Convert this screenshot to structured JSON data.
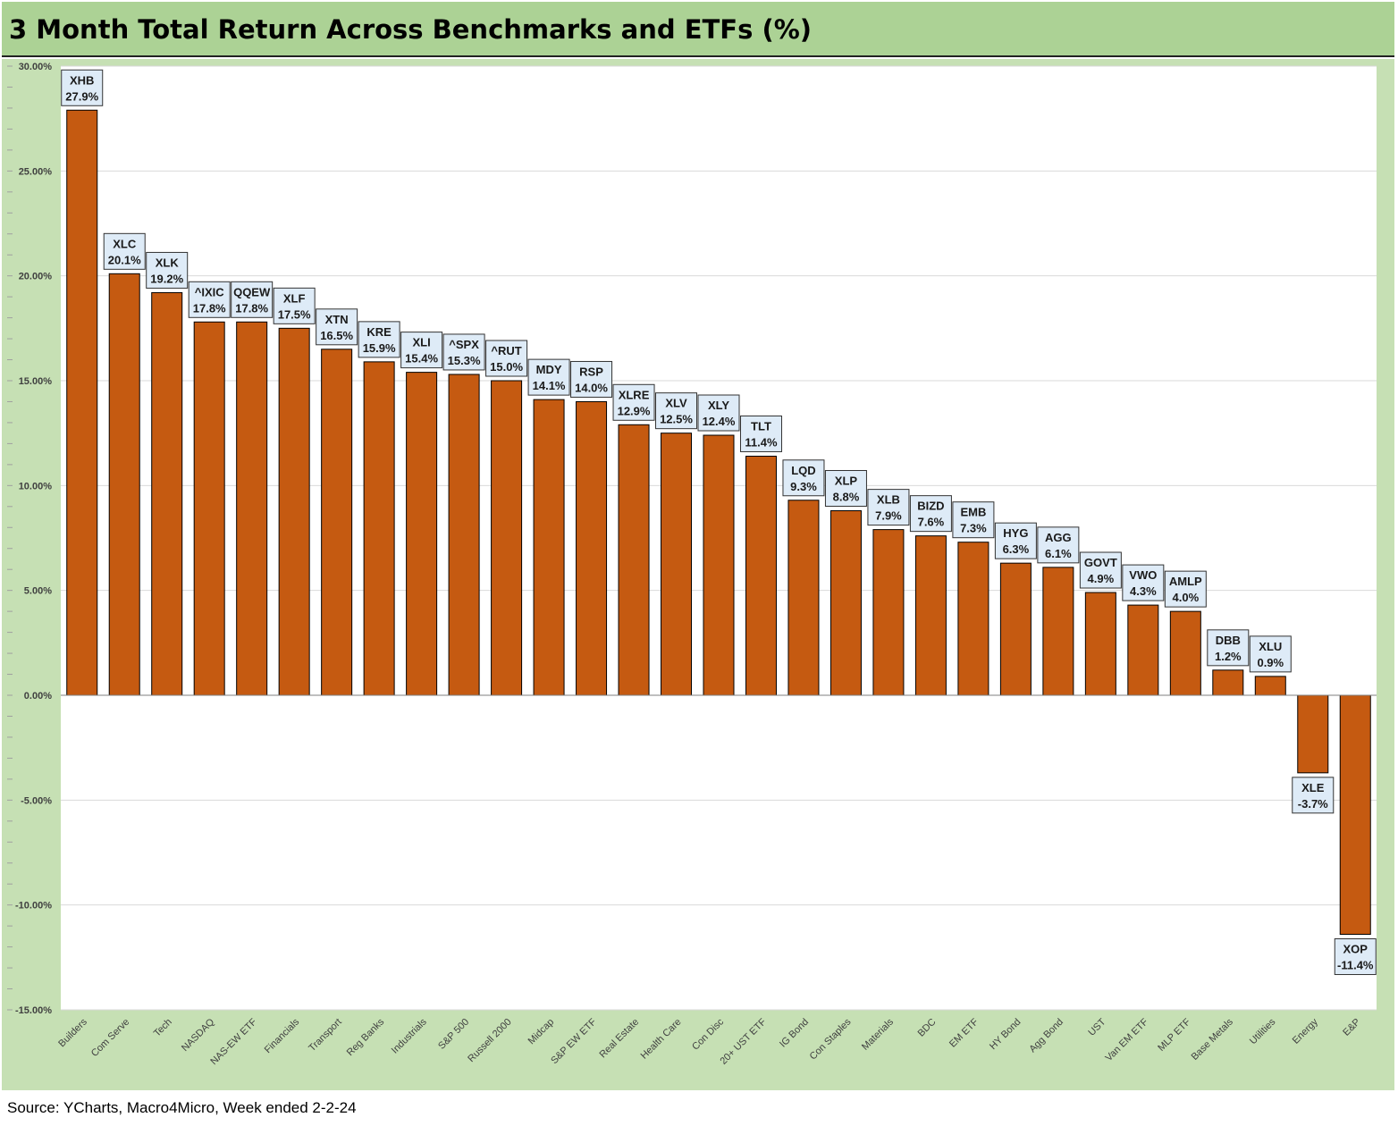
{
  "title": "3 Month Total Return Across Benchmarks and ETFs (%)",
  "source": "Source: YCharts, Macro4Micro, Week ended 2-2-24",
  "colors": {
    "bar": "#c55a11",
    "title_bg": "#acd295",
    "chart_bg": "#c6e0b4",
    "plot_bg": "#ffffff",
    "label_bg": "#deebf7"
  },
  "chart_data": {
    "type": "bar",
    "title": "3 Month Total Return Across Benchmarks and ETFs (%)",
    "ylim": [
      -15,
      30
    ],
    "ytick_values": [
      30,
      25,
      20,
      15,
      10,
      5,
      0,
      -5,
      -10,
      -15
    ],
    "ytick_labels": [
      "30.00%",
      "25.00%",
      "20.00%",
      "15.00%",
      "10.00%",
      "5.00%",
      "0.00%",
      "-5.00%",
      "-10.00%",
      "-15.00%"
    ],
    "grid": true,
    "categories": [
      "Builders",
      "Com Serve",
      "Tech",
      "NASDAQ",
      "NAS-EW ETF",
      "Financials",
      "Transport",
      "Reg Banks",
      "Industrials",
      "S&P 500",
      "Russell 2000",
      "Midcap",
      "S&P EW ETF",
      "Real Estate",
      "Health Care",
      "Con Disc",
      "20+ UST ETF",
      "IG Bond",
      "Con Staples",
      "Materials",
      "BDC",
      "EM ETF",
      "HY Bond",
      "Agg Bond",
      "UST",
      "Van EM ETF",
      "MLP ETF",
      "Base Metals",
      "Utilities",
      "Energy",
      "E&P"
    ],
    "tickers": [
      "XHB",
      "XLC",
      "XLK",
      "^IXIC",
      "QQEW",
      "XLF",
      "XTN",
      "KRE",
      "XLI",
      "^SPX",
      "^RUT",
      "MDY",
      "RSP",
      "XLRE",
      "XLV",
      "XLY",
      "TLT",
      "LQD",
      "XLP",
      "XLB",
      "BIZD",
      "EMB",
      "HYG",
      "AGG",
      "GOVT",
      "VWO",
      "AMLP",
      "DBB",
      "XLU",
      "XLE",
      "XOP"
    ],
    "values": [
      27.9,
      20.1,
      19.2,
      17.8,
      17.8,
      17.5,
      16.5,
      15.9,
      15.4,
      15.3,
      15.0,
      14.1,
      14.0,
      12.9,
      12.5,
      12.4,
      11.4,
      9.3,
      8.8,
      7.9,
      7.6,
      7.3,
      6.3,
      6.1,
      4.9,
      4.3,
      4.0,
      1.2,
      0.9,
      -3.7,
      -11.4
    ],
    "value_labels": [
      "27.9%",
      "20.1%",
      "19.2%",
      "17.8%",
      "17.8%",
      "17.5%",
      "16.5%",
      "15.9%",
      "15.4%",
      "15.3%",
      "15.0%",
      "14.1%",
      "14.0%",
      "12.9%",
      "12.5%",
      "12.4%",
      "11.4%",
      "9.3%",
      "8.8%",
      "7.9%",
      "7.6%",
      "7.3%",
      "6.3%",
      "6.1%",
      "4.9%",
      "4.3%",
      "4.0%",
      "1.2%",
      "0.9%",
      "-3.7%",
      "-11.4%"
    ]
  }
}
